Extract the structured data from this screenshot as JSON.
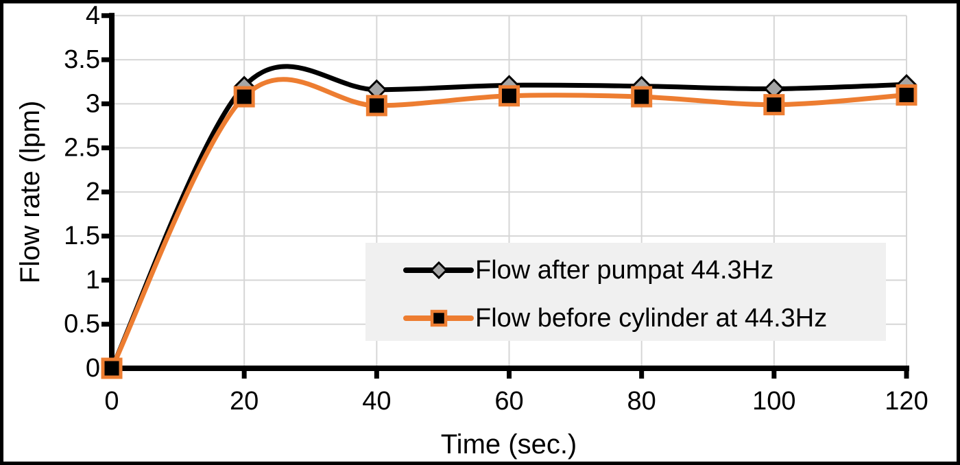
{
  "window": {
    "background": "#ffffff",
    "frame_border_color": "#000000"
  },
  "chart_data": {
    "type": "line",
    "title": "",
    "xlabel": "Time (sec.)",
    "ylabel": "Flow rate (lpm)",
    "x": [
      0,
      20,
      40,
      60,
      80,
      100,
      120
    ],
    "x_tick_labels": [
      "0",
      "20",
      "40",
      "60",
      "80",
      "100",
      "120"
    ],
    "y_tick_labels": [
      "0",
      "0.5",
      "1",
      "1.5",
      "2",
      "2.5",
      "3",
      "3.5",
      "4"
    ],
    "y_tick_values": [
      0,
      0.5,
      1,
      1.5,
      2,
      2.5,
      3,
      3.5,
      4
    ],
    "xlim": [
      0,
      120
    ],
    "ylim": [
      0,
      4
    ],
    "grid": true,
    "line_style": "smooth",
    "series": [
      {
        "name": "Flow after pumpat 44.3Hz",
        "values": [
          0,
          3.2,
          3.16,
          3.21,
          3.2,
          3.17,
          3.22
        ],
        "color": "#000000",
        "marker": "diamond",
        "marker_fill": "#A6A6A6",
        "marker_stroke": "#000000"
      },
      {
        "name": "Flow before cylinder at 44.3Hz",
        "values": [
          0,
          3.08,
          2.98,
          3.09,
          3.08,
          2.99,
          3.1
        ],
        "color": "#ED7D31",
        "marker": "square",
        "marker_fill": "#000000",
        "marker_stroke": "#ED7D31"
      }
    ],
    "legend": {
      "position": "inside-right-middle",
      "background": "#F0F0F0",
      "border": "none"
    },
    "colors": {
      "gridline": "#D6D6D6",
      "axis": "#000000",
      "text": "#000000"
    }
  }
}
